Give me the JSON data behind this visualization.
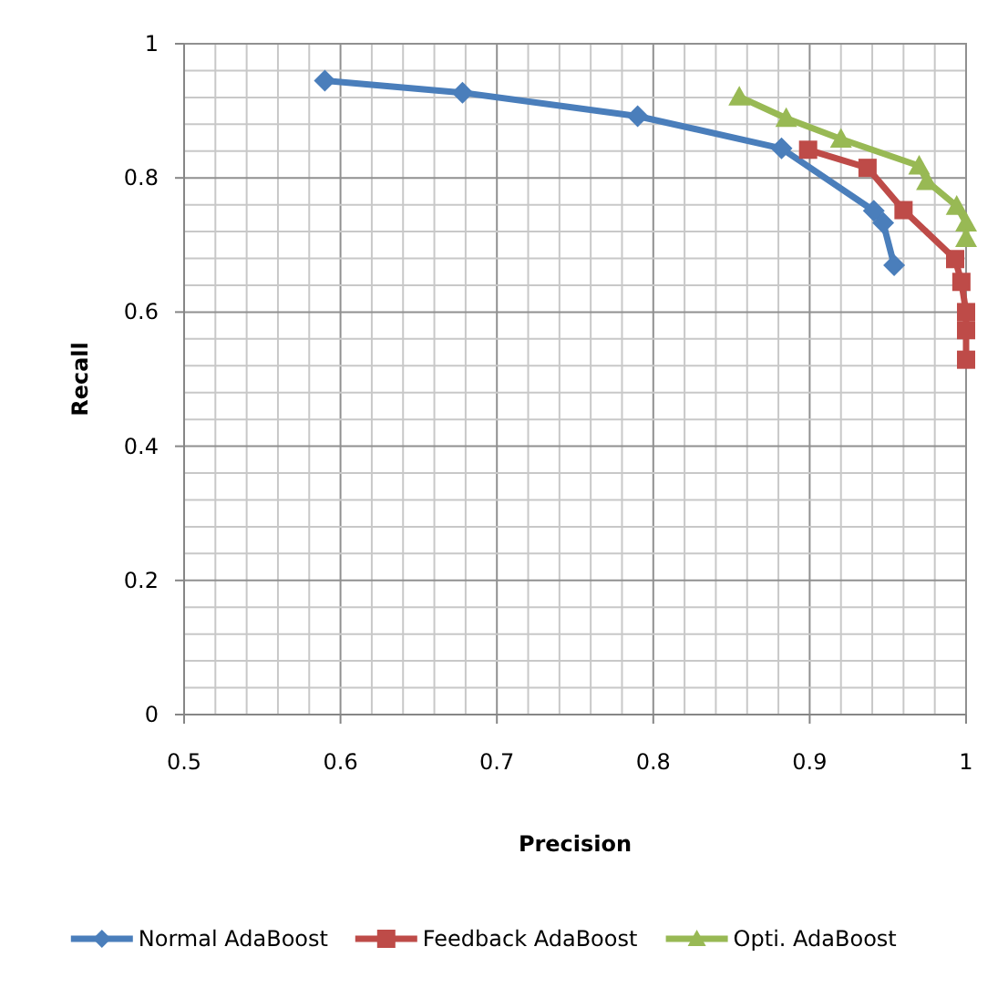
{
  "chart_data": {
    "type": "line",
    "xlabel": "Precision",
    "ylabel": "Recall",
    "xlim": [
      0.5,
      1
    ],
    "ylim": [
      0,
      1
    ],
    "xticks": [
      0.5,
      {
        "value": 0.52,
        "label": null
      },
      {
        "value": 0.54,
        "label": null
      },
      {
        "value": 0.56,
        "label": null
      },
      {
        "value": 0.58,
        "label": null
      },
      0.6,
      {
        "value": 0.62,
        "label": null
      },
      {
        "value": 0.64,
        "label": null
      },
      {
        "value": 0.66,
        "label": null
      },
      {
        "value": 0.68,
        "label": null
      },
      0.7,
      {
        "value": 0.72,
        "label": null
      },
      {
        "value": 0.74,
        "label": null
      },
      {
        "value": 0.76,
        "label": null
      },
      {
        "value": 0.78,
        "label": null
      },
      0.8,
      {
        "value": 0.82,
        "label": null
      },
      {
        "value": 0.84,
        "label": null
      },
      {
        "value": 0.86,
        "label": null
      },
      {
        "value": 0.88,
        "label": null
      },
      0.9,
      {
        "value": 0.92,
        "label": null
      },
      {
        "value": 0.94,
        "label": null
      },
      {
        "value": 0.96,
        "label": null
      },
      {
        "value": 0.98,
        "label": null
      },
      1
    ],
    "yticks": [
      0,
      {
        "value": 0.04,
        "label": null
      },
      {
        "value": 0.08,
        "label": null
      },
      {
        "value": 0.12,
        "label": null
      },
      {
        "value": 0.16,
        "label": null
      },
      0.2,
      {
        "value": 0.24,
        "label": null
      },
      {
        "value": 0.28,
        "label": null
      },
      {
        "value": 0.32,
        "label": null
      },
      {
        "value": 0.36,
        "label": null
      },
      0.4,
      {
        "value": 0.44,
        "label": null
      },
      {
        "value": 0.48,
        "label": null
      },
      {
        "value": 0.52,
        "label": null
      },
      {
        "value": 0.56,
        "label": null
      },
      0.6,
      {
        "value": 0.64,
        "label": null
      },
      {
        "value": 0.68,
        "label": null
      },
      {
        "value": 0.72,
        "label": null
      },
      {
        "value": 0.76,
        "label": null
      },
      0.8,
      {
        "value": 0.84,
        "label": null
      },
      {
        "value": 0.88,
        "label": null
      },
      {
        "value": 0.92,
        "label": null
      },
      {
        "value": 0.96,
        "label": null
      },
      1
    ],
    "grid": true,
    "legend": "bottom",
    "line_style": "solid",
    "series": [
      {
        "name": "Normal AdaBoost",
        "color": "#4a7ebb",
        "marker": "diamond",
        "x": [
          0.59,
          0.678,
          0.79,
          0.882,
          0.941,
          0.947,
          0.954
        ],
        "values": [
          0.945,
          0.927,
          0.892,
          0.844,
          0.751,
          0.733,
          0.67
        ]
      },
      {
        "name": "Feedback AdaBoost",
        "color": "#be4b48",
        "marker": "square",
        "x": [
          0.899,
          0.937,
          0.96,
          0.993,
          0.997,
          1.0,
          1.0,
          1.0
        ],
        "values": [
          0.842,
          0.815,
          0.752,
          0.679,
          0.645,
          0.6,
          0.573,
          0.529
        ]
      },
      {
        "name": "Opti. AdaBoost",
        "color": "#98b954",
        "marker": "triangle",
        "x": [
          0.855,
          0.885,
          0.92,
          0.97,
          0.975,
          0.994,
          1.0,
          1.0
        ],
        "values": [
          0.921,
          0.889,
          0.858,
          0.818,
          0.795,
          0.758,
          0.733,
          0.71
        ]
      }
    ]
  }
}
